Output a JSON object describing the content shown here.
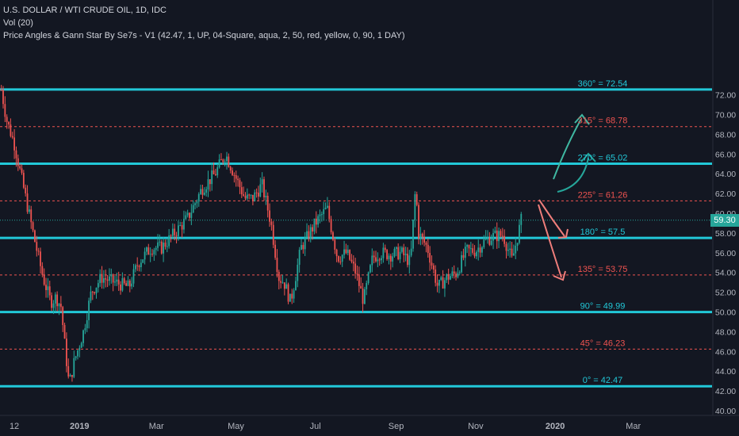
{
  "legend": {
    "symbol": "U.S. DOLLAR / WTI CRUDE OIL, 1D, IDC",
    "volume": "Vol (20)",
    "indicator": "Price Angles & Gann Star By Se7s - V1  (42.47, 1, UP, 04-Square, aqua, 2, 50, red, yellow, 0, 90, 1 DAY)"
  },
  "colors": {
    "background": "#131722",
    "up_candle": "#26a69a",
    "down_candle": "#ef5350",
    "aqua_level": "#22c8d8",
    "red_level": "#ef5350",
    "current_price": "#26a69a",
    "axis_text": "#b2b5be"
  },
  "current_price": {
    "label": "59.30",
    "value": 59.3
  },
  "chart_data": {
    "type": "candlestick",
    "title": "U.S. DOLLAR / WTI CRUDE OIL, 1D, IDC",
    "ylim": [
      40.0,
      73.0
    ],
    "y_ticks": [
      "40.00",
      "42.00",
      "44.00",
      "46.00",
      "48.00",
      "50.00",
      "52.00",
      "54.00",
      "56.00",
      "58.00",
      "60.00",
      "62.00",
      "64.00",
      "66.00",
      "68.00",
      "70.00",
      "72.00"
    ],
    "x_ticks": [
      "12",
      "2019",
      "Mar",
      "May",
      "Jul",
      "Sep",
      "Nov",
      "2020",
      "Mar"
    ],
    "gann_levels": [
      {
        "label": "360° = 72.54",
        "value": 72.54,
        "kind": "major"
      },
      {
        "label": "315° = 68.78",
        "value": 68.78,
        "kind": "minor"
      },
      {
        "label": "270° = 65.02",
        "value": 65.02,
        "kind": "major"
      },
      {
        "label": "225° = 61.26",
        "value": 61.26,
        "kind": "minor"
      },
      {
        "label": "180° = 57.5",
        "value": 57.5,
        "kind": "major"
      },
      {
        "label": "135° = 53.75",
        "value": 53.75,
        "kind": "minor"
      },
      {
        "label": "90° = 49.99",
        "value": 49.99,
        "kind": "major"
      },
      {
        "label": "45° = 46.23",
        "value": 46.23,
        "kind": "minor"
      },
      {
        "label": "0° = 42.47",
        "value": 42.47,
        "kind": "major"
      }
    ],
    "price_path": [
      {
        "date": "2018-11-02",
        "close": 72.5
      },
      {
        "date": "2018-11-06",
        "close": 69.5
      },
      {
        "date": "2018-11-12",
        "close": 67.0
      },
      {
        "date": "2018-11-20",
        "close": 62.0
      },
      {
        "date": "2018-11-28",
        "close": 57.0
      },
      {
        "date": "2018-12-04",
        "close": 53.5
      },
      {
        "date": "2018-12-10",
        "close": 51.0
      },
      {
        "date": "2018-12-14",
        "close": 51.5
      },
      {
        "date": "2018-12-18",
        "close": 50.5
      },
      {
        "date": "2018-12-20",
        "close": 47.5
      },
      {
        "date": "2018-12-24",
        "close": 42.6
      },
      {
        "date": "2018-12-28",
        "close": 45.0
      },
      {
        "date": "2019-01-04",
        "close": 48.0
      },
      {
        "date": "2019-01-10",
        "close": 52.0
      },
      {
        "date": "2019-01-18",
        "close": 53.5
      },
      {
        "date": "2019-01-28",
        "close": 53.0
      },
      {
        "date": "2019-02-08",
        "close": 52.5
      },
      {
        "date": "2019-02-15",
        "close": 55.0
      },
      {
        "date": "2019-02-25",
        "close": 56.5
      },
      {
        "date": "2019-03-05",
        "close": 56.5
      },
      {
        "date": "2019-03-15",
        "close": 58.0
      },
      {
        "date": "2019-03-25",
        "close": 59.5
      },
      {
        "date": "2019-04-05",
        "close": 62.5
      },
      {
        "date": "2019-04-15",
        "close": 64.0
      },
      {
        "date": "2019-04-23",
        "close": 66.0
      },
      {
        "date": "2019-04-30",
        "close": 63.9
      },
      {
        "date": "2019-05-08",
        "close": 61.5
      },
      {
        "date": "2019-05-14",
        "close": 61.5
      },
      {
        "date": "2019-05-21",
        "close": 62.9
      },
      {
        "date": "2019-05-28",
        "close": 59.0
      },
      {
        "date": "2019-06-03",
        "close": 53.5
      },
      {
        "date": "2019-06-07",
        "close": 53.0
      },
      {
        "date": "2019-06-12",
        "close": 51.0
      },
      {
        "date": "2019-06-20",
        "close": 56.5
      },
      {
        "date": "2019-07-01",
        "close": 59.0
      },
      {
        "date": "2019-07-10",
        "close": 60.5
      },
      {
        "date": "2019-07-18",
        "close": 55.5
      },
      {
        "date": "2019-07-25",
        "close": 56.0
      },
      {
        "date": "2019-08-01",
        "close": 54.0
      },
      {
        "date": "2019-08-07",
        "close": 51.1
      },
      {
        "date": "2019-08-14",
        "close": 55.5
      },
      {
        "date": "2019-08-20",
        "close": 56.0
      },
      {
        "date": "2019-08-28",
        "close": 55.8
      },
      {
        "date": "2019-09-05",
        "close": 56.0
      },
      {
        "date": "2019-09-12",
        "close": 55.0
      },
      {
        "date": "2019-09-16",
        "close": 62.9
      },
      {
        "date": "2019-09-18",
        "close": 58.0
      },
      {
        "date": "2019-09-25",
        "close": 56.5
      },
      {
        "date": "2019-10-03",
        "close": 52.5
      },
      {
        "date": "2019-10-10",
        "close": 53.5
      },
      {
        "date": "2019-10-17",
        "close": 53.9
      },
      {
        "date": "2019-10-25",
        "close": 56.2
      },
      {
        "date": "2019-11-01",
        "close": 56.2
      },
      {
        "date": "2019-11-08",
        "close": 57.2
      },
      {
        "date": "2019-11-15",
        "close": 57.7
      },
      {
        "date": "2019-11-22",
        "close": 57.8
      },
      {
        "date": "2019-11-29",
        "close": 55.2
      },
      {
        "date": "2019-12-06",
        "close": 59.3
      }
    ]
  }
}
